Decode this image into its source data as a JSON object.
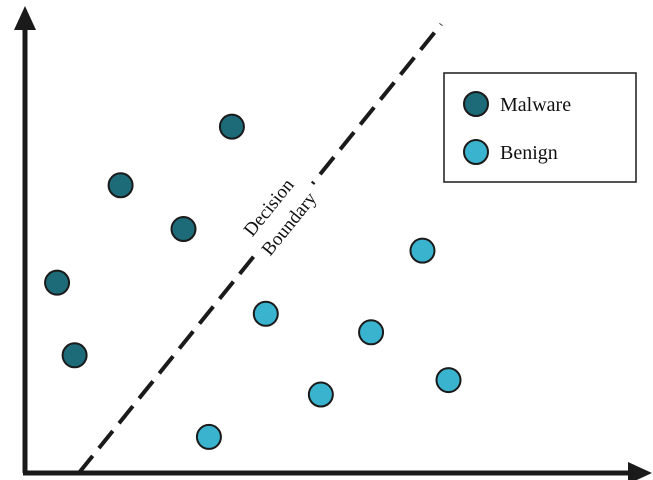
{
  "chart_data": {
    "type": "scatter",
    "title": "",
    "xlabel": "",
    "ylabel": "",
    "xlim": [
      0,
      100
    ],
    "ylim": [
      0,
      100
    ],
    "grid": false,
    "legend_position": "top-right",
    "series": [
      {
        "name": "Malware",
        "color": "#1d6a78",
        "points": [
          {
            "x": 34.2,
            "y": 76.8
          },
          {
            "x": 15.8,
            "y": 63.8
          },
          {
            "x": 26.2,
            "y": 54.1
          },
          {
            "x": 5.3,
            "y": 42.2
          },
          {
            "x": 8.2,
            "y": 26.1
          }
        ]
      },
      {
        "name": "Benign",
        "color": "#3ab3cf",
        "points": [
          {
            "x": 65.7,
            "y": 49.3
          },
          {
            "x": 39.8,
            "y": 35.3
          },
          {
            "x": 57.2,
            "y": 31.2
          },
          {
            "x": 70.0,
            "y": 20.6
          },
          {
            "x": 48.9,
            "y": 17.4
          },
          {
            "x": 30.4,
            "y": 8.0
          }
        ]
      }
    ],
    "boundary": {
      "label_line1": "Decision",
      "label_line2": "Boundary",
      "from": {
        "x": 8.9,
        "y": 0
      },
      "to": {
        "x": 68.8,
        "y": 99.5
      },
      "style": "dashed"
    }
  }
}
